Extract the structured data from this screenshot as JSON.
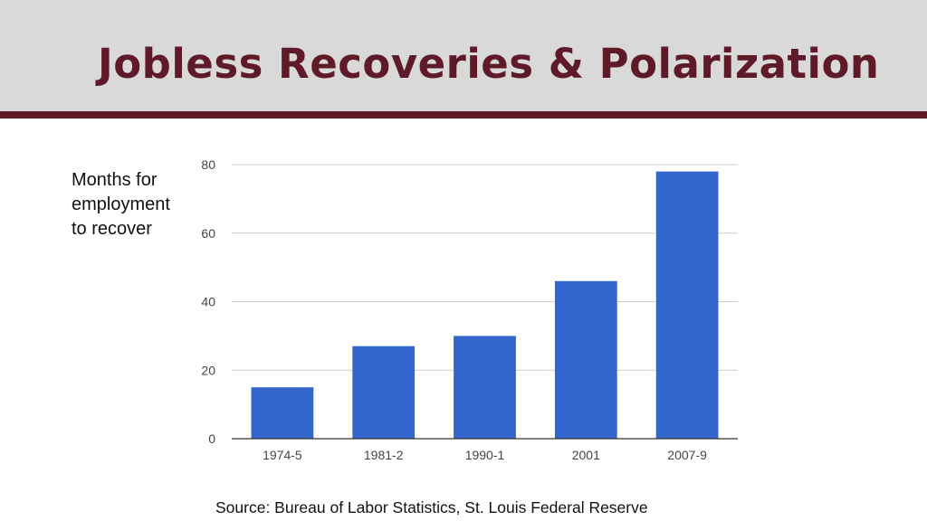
{
  "slide": {
    "title": "Jobless Recoveries & Polarization",
    "ylabel_lines": [
      "Months for",
      "employment",
      "to  recover"
    ],
    "source": "Source:  Bureau of Labor Statistics, St. Louis Federal Reserve"
  },
  "colors": {
    "title": "#5e1a28",
    "header_band": "#d9d9d9",
    "header_rule": "#5e1a28",
    "bar": "#3366cc",
    "grid": "#cccccc",
    "tick_text": "#444444"
  },
  "chart_data": {
    "type": "bar",
    "categories": [
      "1974-5",
      "1981-2",
      "1990-1",
      "2001",
      "2007-9"
    ],
    "values": [
      15,
      27,
      30,
      46,
      78
    ],
    "title": "",
    "xlabel": "",
    "ylabel": "Months for employment to  recover",
    "ylim": [
      0,
      80
    ],
    "yticks": [
      0,
      20,
      40,
      60,
      80
    ],
    "grid": true,
    "legend": "none"
  }
}
